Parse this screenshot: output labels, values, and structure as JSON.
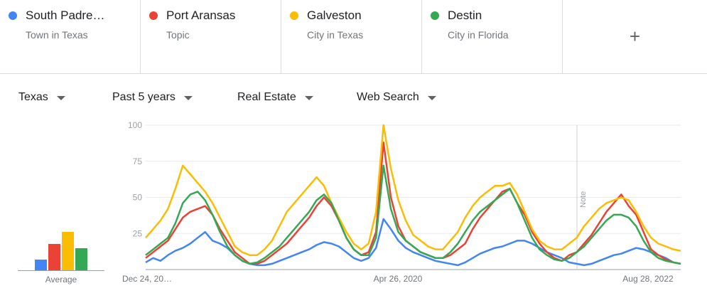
{
  "terms": [
    {
      "name": "South Padre…",
      "subtitle": "Town in Texas",
      "color": "#4285f4"
    },
    {
      "name": "Port Aransas",
      "subtitle": "Topic",
      "color": "#ea4335"
    },
    {
      "name": "Galveston",
      "subtitle": "City in Texas",
      "color": "#fbbc04"
    },
    {
      "name": "Destin",
      "subtitle": "City in Florida",
      "color": "#34a853"
    }
  ],
  "add_label": "+",
  "filters": {
    "region": "Texas",
    "time": "Past 5 years",
    "category": "Real Estate",
    "search_type": "Web Search"
  },
  "average": {
    "label": "Average",
    "values": [
      10,
      25,
      36,
      21
    ]
  },
  "note_label": "Note",
  "chart_data": {
    "type": "line",
    "ylim": [
      0,
      100
    ],
    "y_ticks": [
      "25",
      "50",
      "75",
      "100"
    ],
    "x_tick_labels": [
      "Dec 24, 20…",
      "Apr 26, 2020",
      "Aug 28, 2022"
    ],
    "annotation": "Note",
    "series": [
      {
        "name": "South Padre…",
        "color": "#4285f4",
        "values": [
          5,
          8,
          6,
          10,
          13,
          15,
          18,
          22,
          26,
          20,
          18,
          15,
          10,
          6,
          4,
          3,
          3,
          4,
          6,
          8,
          10,
          12,
          14,
          17,
          19,
          18,
          16,
          12,
          8,
          6,
          8,
          15,
          35,
          28,
          20,
          15,
          12,
          10,
          8,
          6,
          5,
          4,
          3,
          5,
          8,
          11,
          13,
          15,
          16,
          18,
          20,
          20,
          18,
          15,
          12,
          10,
          8,
          5,
          4,
          3,
          4,
          6,
          8,
          10,
          11,
          13,
          15,
          14,
          12,
          10,
          8,
          5,
          4
        ]
      },
      {
        "name": "Port Aransas",
        "color": "#ea4335",
        "values": [
          8,
          12,
          16,
          20,
          28,
          36,
          40,
          42,
          44,
          38,
          28,
          20,
          12,
          8,
          4,
          4,
          6,
          10,
          14,
          18,
          24,
          30,
          36,
          44,
          50,
          44,
          34,
          22,
          14,
          10,
          12,
          26,
          88,
          50,
          30,
          20,
          16,
          12,
          10,
          8,
          8,
          10,
          14,
          18,
          28,
          36,
          42,
          48,
          54,
          56,
          46,
          38,
          26,
          18,
          12,
          8,
          6,
          10,
          12,
          18,
          24,
          32,
          40,
          46,
          52,
          44,
          38,
          26,
          14,
          10,
          7,
          5,
          4
        ]
      },
      {
        "name": "Galveston",
        "color": "#fbbc04",
        "values": [
          22,
          28,
          34,
          42,
          56,
          72,
          66,
          60,
          54,
          46,
          36,
          26,
          16,
          12,
          10,
          10,
          14,
          20,
          30,
          40,
          46,
          52,
          58,
          64,
          58,
          46,
          36,
          26,
          18,
          14,
          18,
          40,
          100,
          70,
          48,
          34,
          24,
          20,
          16,
          14,
          14,
          20,
          26,
          36,
          44,
          50,
          54,
          58,
          58,
          60,
          52,
          40,
          28,
          20,
          16,
          14,
          14,
          18,
          22,
          30,
          36,
          42,
          46,
          48,
          50,
          48,
          40,
          30,
          22,
          18,
          16,
          14,
          13
        ]
      },
      {
        "name": "Destin",
        "color": "#34a853",
        "values": [
          10,
          14,
          18,
          22,
          32,
          46,
          52,
          54,
          48,
          38,
          26,
          16,
          10,
          6,
          4,
          5,
          8,
          12,
          16,
          22,
          28,
          34,
          40,
          48,
          52,
          46,
          34,
          22,
          14,
          10,
          10,
          22,
          72,
          42,
          26,
          20,
          16,
          12,
          10,
          8,
          8,
          12,
          18,
          26,
          34,
          40,
          44,
          48,
          52,
          56,
          46,
          34,
          22,
          14,
          10,
          7,
          6,
          8,
          12,
          16,
          22,
          28,
          34,
          38,
          38,
          36,
          30,
          20,
          12,
          8,
          6,
          5,
          4
        ]
      }
    ]
  }
}
